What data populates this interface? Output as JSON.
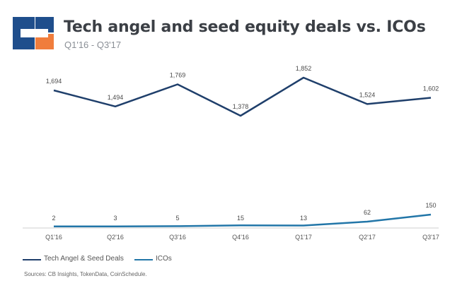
{
  "header": {
    "title": "Tech angel and seed equity deals vs. ICOs",
    "subtitle": "Q1'16 - Q3'17",
    "logo_icon": "cb-insights-logo-icon"
  },
  "colors": {
    "logo_blue": "#1f4e8c",
    "logo_orange": "#f07d3c",
    "series_deals": "#1f3f6b",
    "series_icos": "#2276a8",
    "axis": "#cfcfcf",
    "label": "#4a4a4a"
  },
  "chart_data": {
    "type": "line",
    "categories": [
      "Q1'16",
      "Q2'16",
      "Q3'16",
      "Q4'16",
      "Q1'17",
      "Q2'17",
      "Q3'17"
    ],
    "series": [
      {
        "name": "Tech Angel & Seed Deals",
        "values": [
          1694,
          1494,
          1769,
          1378,
          1852,
          1524,
          1602
        ],
        "labels": [
          "1,694",
          "1,494",
          "1,769",
          "1,378",
          "1,852",
          "1,524",
          "1,602"
        ]
      },
      {
        "name": "ICOs",
        "values": [
          2,
          3,
          5,
          15,
          13,
          62,
          150
        ],
        "labels": [
          "2",
          "3",
          "5",
          "15",
          "13",
          "62",
          "150"
        ]
      }
    ],
    "title": "Tech angel and seed equity deals vs. ICOs",
    "subtitle": "Q1'16 - Q3'17",
    "xlabel": "",
    "ylabel": "",
    "grid": false,
    "legend_position": "bottom-left"
  },
  "legend": {
    "items": [
      "Tech Angel & Seed Deals",
      "ICOs"
    ]
  },
  "source": "Sources: CB Insights, TokenData, CoinSchedule."
}
